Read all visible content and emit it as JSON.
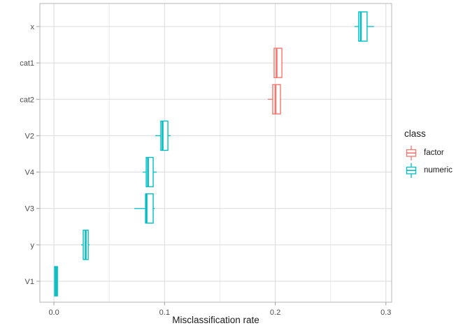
{
  "chart_data": {
    "type": "boxplot",
    "orientation": "horizontal",
    "title": "",
    "xlabel": "Misclassification rate",
    "ylabel": "",
    "xlim": [
      -0.0127,
      0.3052
    ],
    "x_tick_values": [
      0.0,
      0.1,
      0.2,
      0.3
    ],
    "x_tick_labels": [
      "0.0",
      "0.1",
      "0.2",
      "0.3"
    ],
    "x_minor_values": [
      0.05,
      0.15,
      0.25
    ],
    "grid": true,
    "legend_position": "right",
    "categories": [
      "x",
      "cat1",
      "cat2",
      "V2",
      "V4",
      "V3",
      "y",
      "V1"
    ],
    "series": [
      {
        "variable": "x",
        "class": "numeric",
        "whisker_low": 0.2716,
        "q1": 0.2754,
        "median": 0.2773,
        "q3": 0.283,
        "whisker_high": 0.2893
      },
      {
        "variable": "cat1",
        "class": "factor",
        "whisker_low": 0.199,
        "q1": 0.199,
        "median": 0.2012,
        "q3": 0.206,
        "whisker_high": 0.2067
      },
      {
        "variable": "cat2",
        "class": "factor",
        "whisker_low": 0.1933,
        "q1": 0.1977,
        "median": 0.2002,
        "q3": 0.2047,
        "whisker_high": 0.2053
      },
      {
        "variable": "V2",
        "class": "numeric",
        "whisker_low": 0.0916,
        "q1": 0.0966,
        "median": 0.0982,
        "q3": 0.103,
        "whisker_high": 0.1055
      },
      {
        "variable": "V4",
        "class": "numeric",
        "whisker_low": 0.0802,
        "q1": 0.0834,
        "median": 0.085,
        "q3": 0.0897,
        "whisker_high": 0.0929
      },
      {
        "variable": "V3",
        "class": "numeric",
        "whisker_low": 0.0727,
        "q1": 0.0828,
        "median": 0.0837,
        "q3": 0.0897,
        "whisker_high": 0.091
      },
      {
        "variable": "y",
        "class": "numeric",
        "whisker_low": 0.0246,
        "q1": 0.0265,
        "median": 0.0287,
        "q3": 0.031,
        "whisker_high": 0.0322
      },
      {
        "variable": "V1",
        "class": "numeric",
        "whisker_low": 0.0006,
        "q1": 0.0006,
        "median": 0.0019,
        "q3": 0.0032,
        "whisker_high": 0.0032
      }
    ]
  },
  "legend": {
    "title": "class",
    "items": [
      {
        "label": "factor",
        "color": "#F8766D"
      },
      {
        "label": "numeric",
        "color": "#00BFC4"
      }
    ]
  },
  "colors": {
    "factor": "#F8766D",
    "numeric": "#00BFC4",
    "box_fill": "#FFFFFF",
    "grid_major": "#DBDBDB",
    "grid_minor": "#EBEBEB",
    "panel_border": "#B5B5B5",
    "tick": "#9E9E9E",
    "tick_label": "#4D4D4D",
    "axis_title": "#1A1A1A"
  }
}
